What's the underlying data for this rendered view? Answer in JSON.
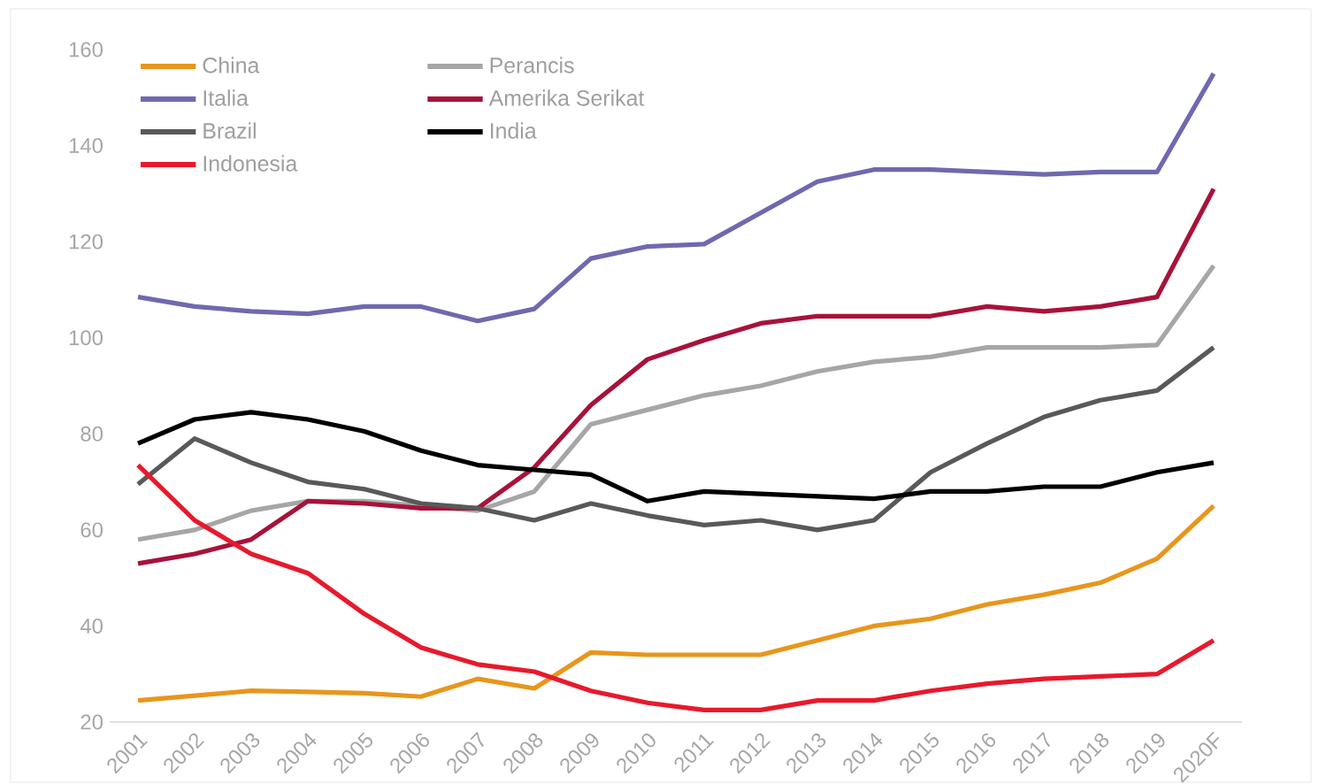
{
  "chart_data": {
    "type": "line",
    "categories": [
      "2001",
      "2002",
      "2003",
      "2004",
      "2005",
      "2006",
      "2007",
      "2008",
      "2009",
      "2010",
      "2011",
      "2012",
      "2013",
      "2014",
      "2015",
      "2016",
      "2017",
      "2018",
      "2019",
      "2020F"
    ],
    "series": [
      {
        "name": "China",
        "color": "#e8961c",
        "values": [
          24.5,
          25.5,
          26.5,
          26.3,
          26,
          25.3,
          29,
          27,
          34.5,
          34,
          34,
          34,
          37,
          40,
          41.5,
          44.5,
          46.5,
          49,
          54,
          65
        ]
      },
      {
        "name": "Perancis",
        "color": "#a6a6a6",
        "values": [
          58,
          60,
          64,
          66,
          66,
          65,
          64,
          68,
          82,
          85,
          88,
          90,
          93,
          95,
          96,
          98,
          98,
          98,
          98.5,
          115
        ]
      },
      {
        "name": "Italia",
        "color": "#7068b0",
        "values": [
          108.5,
          106.5,
          105.5,
          105,
          106.5,
          106.5,
          103.5,
          106,
          116.5,
          119,
          119.5,
          126,
          132.5,
          135,
          135,
          134.5,
          134,
          134.5,
          134.5,
          155
        ]
      },
      {
        "name": "Amerika Serikat",
        "color": "#a8123a",
        "values": [
          53,
          55,
          58,
          66,
          65.5,
          64.5,
          64.5,
          73,
          86,
          95.5,
          99.5,
          103,
          104.5,
          104.5,
          104.5,
          106.5,
          105.5,
          106.5,
          108.5,
          131
        ]
      },
      {
        "name": "Brazil",
        "color": "#595959",
        "values": [
          69.5,
          79,
          74,
          70,
          68.5,
          65.5,
          64.5,
          62,
          65.5,
          63,
          61,
          62,
          60,
          62,
          72,
          78,
          83.5,
          87,
          89,
          98
        ]
      },
      {
        "name": "India",
        "color": "#000000",
        "values": [
          78,
          83,
          84.5,
          83,
          80.5,
          76.5,
          73.5,
          72.5,
          71.5,
          66,
          68,
          67.5,
          67,
          66.5,
          68,
          68,
          69,
          69,
          72,
          74
        ]
      },
      {
        "name": "Indonesia",
        "color": "#e8192c",
        "values": [
          73.5,
          62,
          55,
          51,
          42.5,
          35.5,
          32,
          30.5,
          26.5,
          24,
          22.5,
          22.5,
          24.5,
          24.5,
          26.5,
          28,
          29,
          29.5,
          30,
          37
        ]
      }
    ],
    "ylim": [
      20,
      160
    ],
    "yticks": [
      20,
      40,
      60,
      80,
      100,
      120,
      140,
      160
    ],
    "legend": "top left",
    "grid": false,
    "marker": "none",
    "line_style": "solid"
  }
}
